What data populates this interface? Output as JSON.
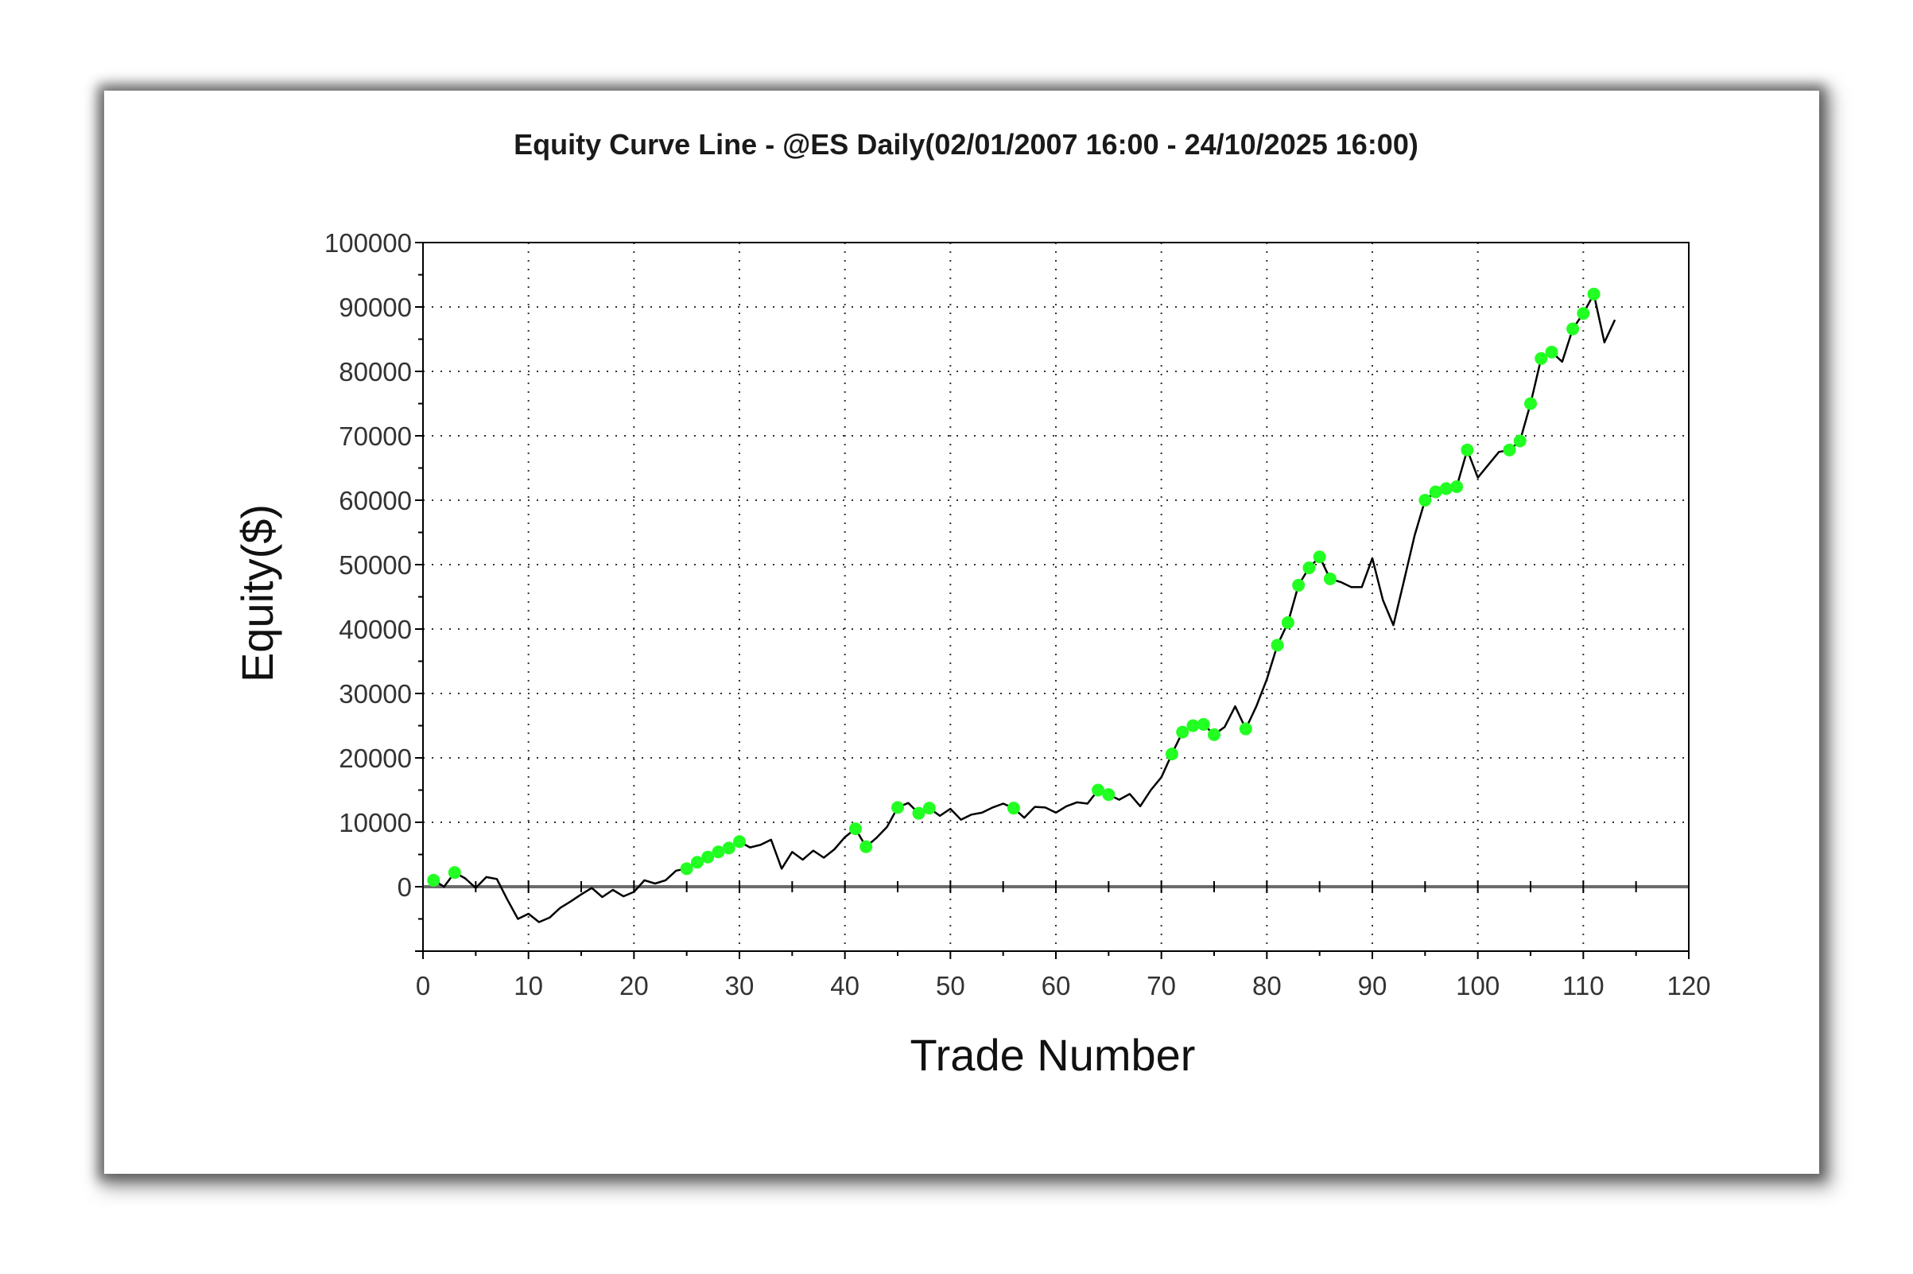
{
  "chart_data": {
    "type": "line",
    "title": "Equity Curve Line - @ES Daily(02/01/2007 16:00 - 24/10/2025 16:00)",
    "xlabel": "Trade Number",
    "ylabel": "Equity($)",
    "xlim": [
      0,
      120
    ],
    "ylim": [
      -10000,
      100000
    ],
    "x_ticks": [
      0,
      10,
      20,
      30,
      40,
      50,
      60,
      70,
      80,
      90,
      100,
      110,
      120
    ],
    "y_ticks": [
      0,
      10000,
      20000,
      30000,
      40000,
      50000,
      60000,
      70000,
      80000,
      90000,
      100000
    ],
    "grid": true,
    "zero_line": 0,
    "colors": {
      "line": "#000000",
      "marker": "#22ff22",
      "grid": "#333333",
      "axis": "#000000",
      "zero_line": "#6b6b6b"
    },
    "series": [
      {
        "x": [
          1,
          2,
          3,
          4,
          5,
          6,
          7,
          8,
          9,
          10,
          11,
          12,
          13,
          14,
          15,
          16,
          17,
          18,
          19,
          20,
          21,
          22,
          23,
          24,
          25,
          26,
          27,
          28,
          29,
          30,
          31,
          32,
          33,
          34,
          35,
          36,
          37,
          38,
          39,
          40,
          41,
          42,
          43,
          44,
          45,
          46,
          47,
          48,
          49,
          50,
          51,
          52,
          53,
          54,
          55,
          56,
          57,
          58,
          59,
          60,
          61,
          62,
          63,
          64,
          65,
          66,
          67,
          68,
          69,
          70,
          71,
          72,
          73,
          74,
          75,
          76,
          77,
          78,
          79,
          80,
          81,
          82,
          83,
          84,
          85,
          86,
          87,
          88,
          89,
          90,
          91,
          92,
          93,
          94,
          95,
          96,
          97,
          98,
          99,
          100,
          101,
          102,
          103,
          104,
          105,
          106,
          107,
          108,
          109,
          110,
          111,
          112,
          113
        ],
        "values": [
          1000,
          0,
          2200,
          1300,
          -200,
          1500,
          1200,
          -2000,
          -5000,
          -4200,
          -5500,
          -4800,
          -3300,
          -2300,
          -1200,
          -200,
          -1600,
          -500,
          -1500,
          -800,
          1000,
          500,
          1000,
          2500,
          2800,
          3800,
          4600,
          5400,
          6000,
          7000,
          6100,
          6500,
          7300,
          2800,
          5400,
          4200,
          5600,
          4500,
          5800,
          7700,
          9000,
          6200,
          7600,
          9300,
          12300,
          13000,
          11400,
          12200,
          11000,
          12100,
          10400,
          11200,
          11500,
          12300,
          12900,
          12200,
          10700,
          12400,
          12300,
          11500,
          12500,
          13100,
          12900,
          15000,
          14300,
          13500,
          14400,
          12500,
          15000,
          17000,
          20600,
          24000,
          25000,
          25200,
          23600,
          24800,
          28000,
          24500,
          28000,
          32200,
          37500,
          41000,
          46800,
          49500,
          51200,
          47800,
          47300,
          46500,
          46500,
          51000,
          44500,
          40600,
          47500,
          54500,
          60000,
          61300,
          61800,
          62100,
          67800,
          63500,
          65500,
          67500,
          67800,
          69200,
          75000,
          82000,
          83000,
          81500,
          86600,
          89000,
          92000,
          84500,
          88000
        ]
      }
    ],
    "winning_trades_x": [
      1,
      3,
      25,
      26,
      27,
      28,
      29,
      30,
      41,
      42,
      45,
      47,
      48,
      56,
      64,
      65,
      71,
      72,
      73,
      74,
      75,
      78,
      81,
      82,
      83,
      84,
      85,
      86,
      95,
      96,
      97,
      98,
      99,
      103,
      104,
      105,
      106,
      107,
      109,
      110,
      111
    ]
  }
}
